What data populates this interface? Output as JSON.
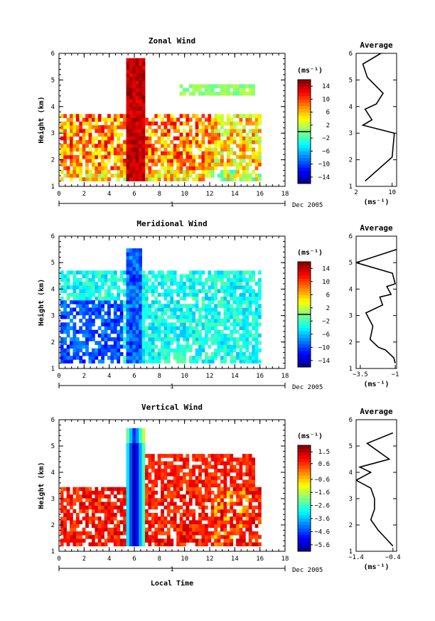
{
  "chart_data": [
    {
      "type": "heatmap",
      "title": "Zonal Wind",
      "ylabel": "Height (km)",
      "xlabel": "",
      "x_ticks": [
        0,
        2,
        4,
        6,
        8,
        10,
        12,
        14,
        16,
        18
      ],
      "y_ticks": [
        1,
        2,
        3,
        4,
        5,
        6
      ],
      "xlim": [
        0,
        18
      ],
      "ylim": [
        1,
        6
      ],
      "date_row": {
        "day": "1",
        "month_year": "Dec 2005"
      },
      "colorbar": {
        "unit": "(ms⁻¹)",
        "ticks": [
          14,
          10,
          6,
          2,
          -2,
          -6,
          -10,
          -14
        ],
        "range": [
          -16,
          16
        ]
      },
      "average": {
        "title": "Average",
        "xlabel": "(ms⁻¹)",
        "x_ticks": [
          2,
          10
        ],
        "xlim": [
          2,
          11
        ],
        "ylim": [
          1,
          6
        ],
        "y_ticks": [
          1,
          2,
          3,
          4,
          5,
          6
        ],
        "x": [
          11.5,
          12.0,
          7.5,
          3.5,
          4.5,
          8.0,
          6.5,
          4.0,
          5.5,
          3.5,
          10.5,
          10.0,
          4.0
        ],
        "y": [
          6.2,
          6.1,
          6.0,
          5.6,
          5.1,
          4.5,
          4.1,
          3.9,
          3.5,
          3.3,
          3.0,
          2.1,
          1.2
        ]
      }
    },
    {
      "type": "heatmap",
      "title": "Meridional Wind",
      "ylabel": "Height (km)",
      "xlabel": "",
      "x_ticks": [
        0,
        2,
        4,
        6,
        8,
        10,
        12,
        14,
        16,
        18
      ],
      "y_ticks": [
        1,
        2,
        3,
        4,
        5,
        6
      ],
      "xlim": [
        0,
        18
      ],
      "ylim": [
        1,
        6
      ],
      "date_row": {
        "day": "1",
        "month_year": "Dec 2005"
      },
      "colorbar": {
        "unit": "(ms⁻¹)",
        "ticks": [
          14,
          10,
          6,
          2,
          -2,
          -6,
          -10,
          -14
        ],
        "range": [
          -16,
          16
        ]
      },
      "average": {
        "title": "Average",
        "xlabel": "(ms⁻¹)",
        "x_ticks": [
          -3.5,
          -1.0
        ],
        "xlim": [
          -3.8,
          -0.9
        ],
        "ylim": [
          1,
          6
        ],
        "y_ticks": [
          1,
          2,
          3,
          4,
          5,
          6
        ],
        "x": [
          -0.9,
          -3.8,
          -1.2,
          -1.0,
          -1.6,
          -1.3,
          -2.1,
          -1.9,
          -3.1,
          -2.6,
          -2.8,
          -2.2,
          -1.7,
          -1.1,
          -1.0
        ],
        "y": [
          5.5,
          5.0,
          4.6,
          4.2,
          4.1,
          3.8,
          3.7,
          3.4,
          3.1,
          2.6,
          2.1,
          1.8,
          1.7,
          1.4,
          1.2
        ]
      }
    },
    {
      "type": "heatmap",
      "title": "Vertical Wind",
      "ylabel": "Height (km)",
      "xlabel": "Local Time",
      "x_ticks": [
        0,
        2,
        4,
        6,
        8,
        10,
        12,
        14,
        16,
        18
      ],
      "y_ticks": [
        1,
        2,
        3,
        4,
        5,
        6
      ],
      "xlim": [
        0,
        18
      ],
      "ylim": [
        1,
        6
      ],
      "date_row": {
        "day": "1",
        "month_year": "Dec 2005"
      },
      "colorbar": {
        "unit": "(ms⁻¹)",
        "ticks": [
          1.5,
          0.6,
          -0.6,
          -1.6,
          -2.6,
          -3.6,
          -4.6,
          -5.6
        ],
        "range": [
          -6.1,
          2.0
        ]
      },
      "average": {
        "title": "Average",
        "xlabel": "(ms⁻¹)",
        "x_ticks": [
          -1.4,
          -0.4
        ],
        "xlim": [
          -1.4,
          -0.3
        ],
        "ylim": [
          1,
          6
        ],
        "y_ticks": [
          1,
          2,
          3,
          4,
          5,
          6
        ],
        "x": [
          -0.4,
          -1.1,
          -0.5,
          -1.3,
          -1.0,
          -1.4,
          -1.0,
          -0.9,
          -0.9,
          -1.0,
          -0.9,
          -0.8,
          -0.6,
          -0.4
        ],
        "y": [
          5.5,
          5.1,
          4.5,
          4.2,
          4.0,
          3.7,
          3.4,
          3.0,
          2.6,
          2.2,
          2.0,
          1.8,
          1.5,
          1.2
        ]
      }
    }
  ]
}
